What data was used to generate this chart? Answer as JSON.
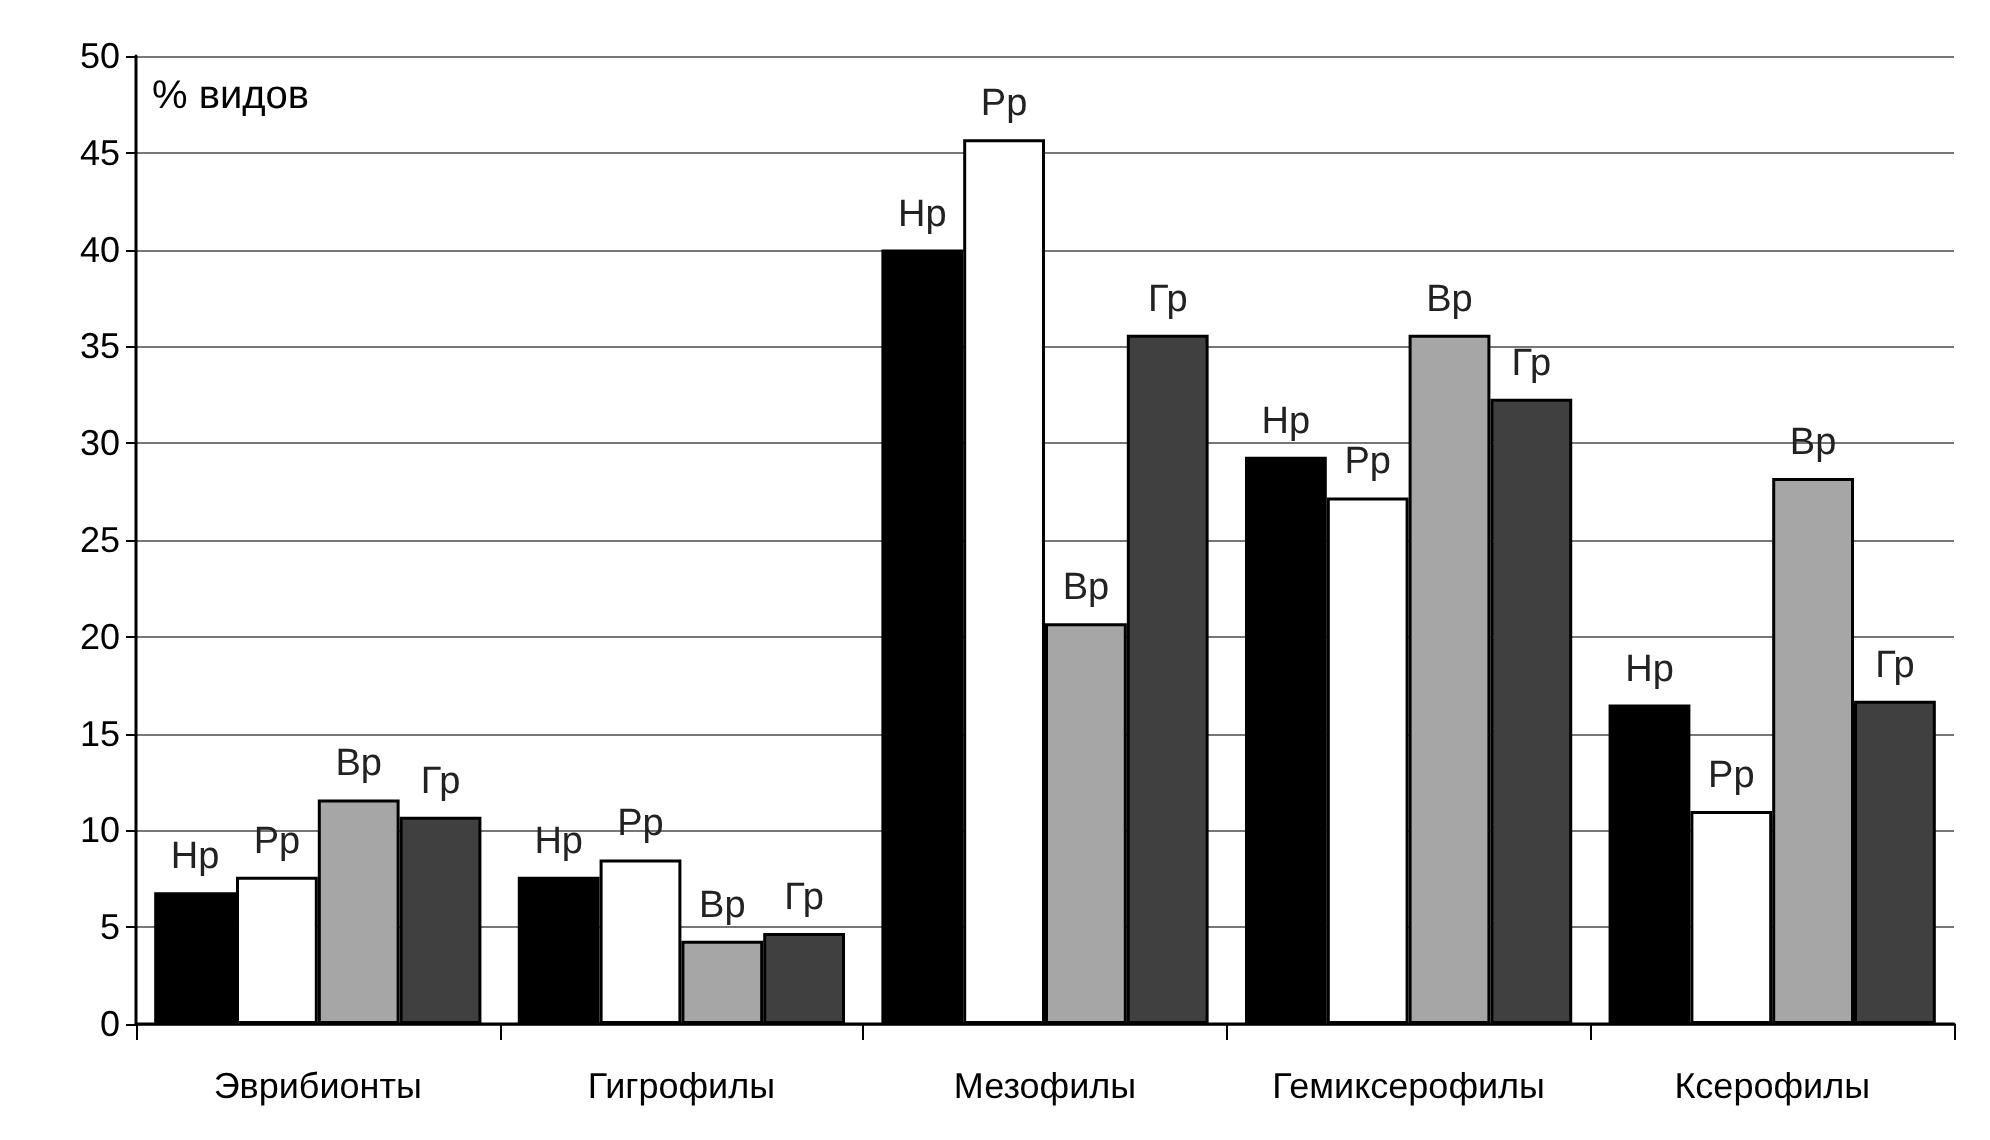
{
  "chart_data": {
    "type": "bar",
    "ylabel": "% видов",
    "categories": [
      "Эврибионты",
      "Гигрофилы",
      "Мезофилы",
      "Гемиксерофилы",
      "Ксерофилы"
    ],
    "series": [
      {
        "name": "Нр",
        "color": "#000000",
        "values": [
          6.8,
          7.6,
          40,
          29.3,
          16.5
        ]
      },
      {
        "name": "Рр",
        "color": "#ffffff",
        "values": [
          7.6,
          8.5,
          45.7,
          27.2,
          11.0
        ]
      },
      {
        "name": "Вр",
        "color": "#a6a6a6",
        "values": [
          11.6,
          4.3,
          20.7,
          35.6,
          28.2
        ]
      },
      {
        "name": "Гр",
        "color": "#404040",
        "values": [
          10.7,
          4.7,
          35.6,
          32.3,
          16.7
        ]
      }
    ],
    "ylim": [
      0,
      50
    ],
    "yticks": [
      0,
      5,
      10,
      15,
      20,
      25,
      30,
      35,
      40,
      45,
      50
    ],
    "grid": "y",
    "legend": false
  }
}
